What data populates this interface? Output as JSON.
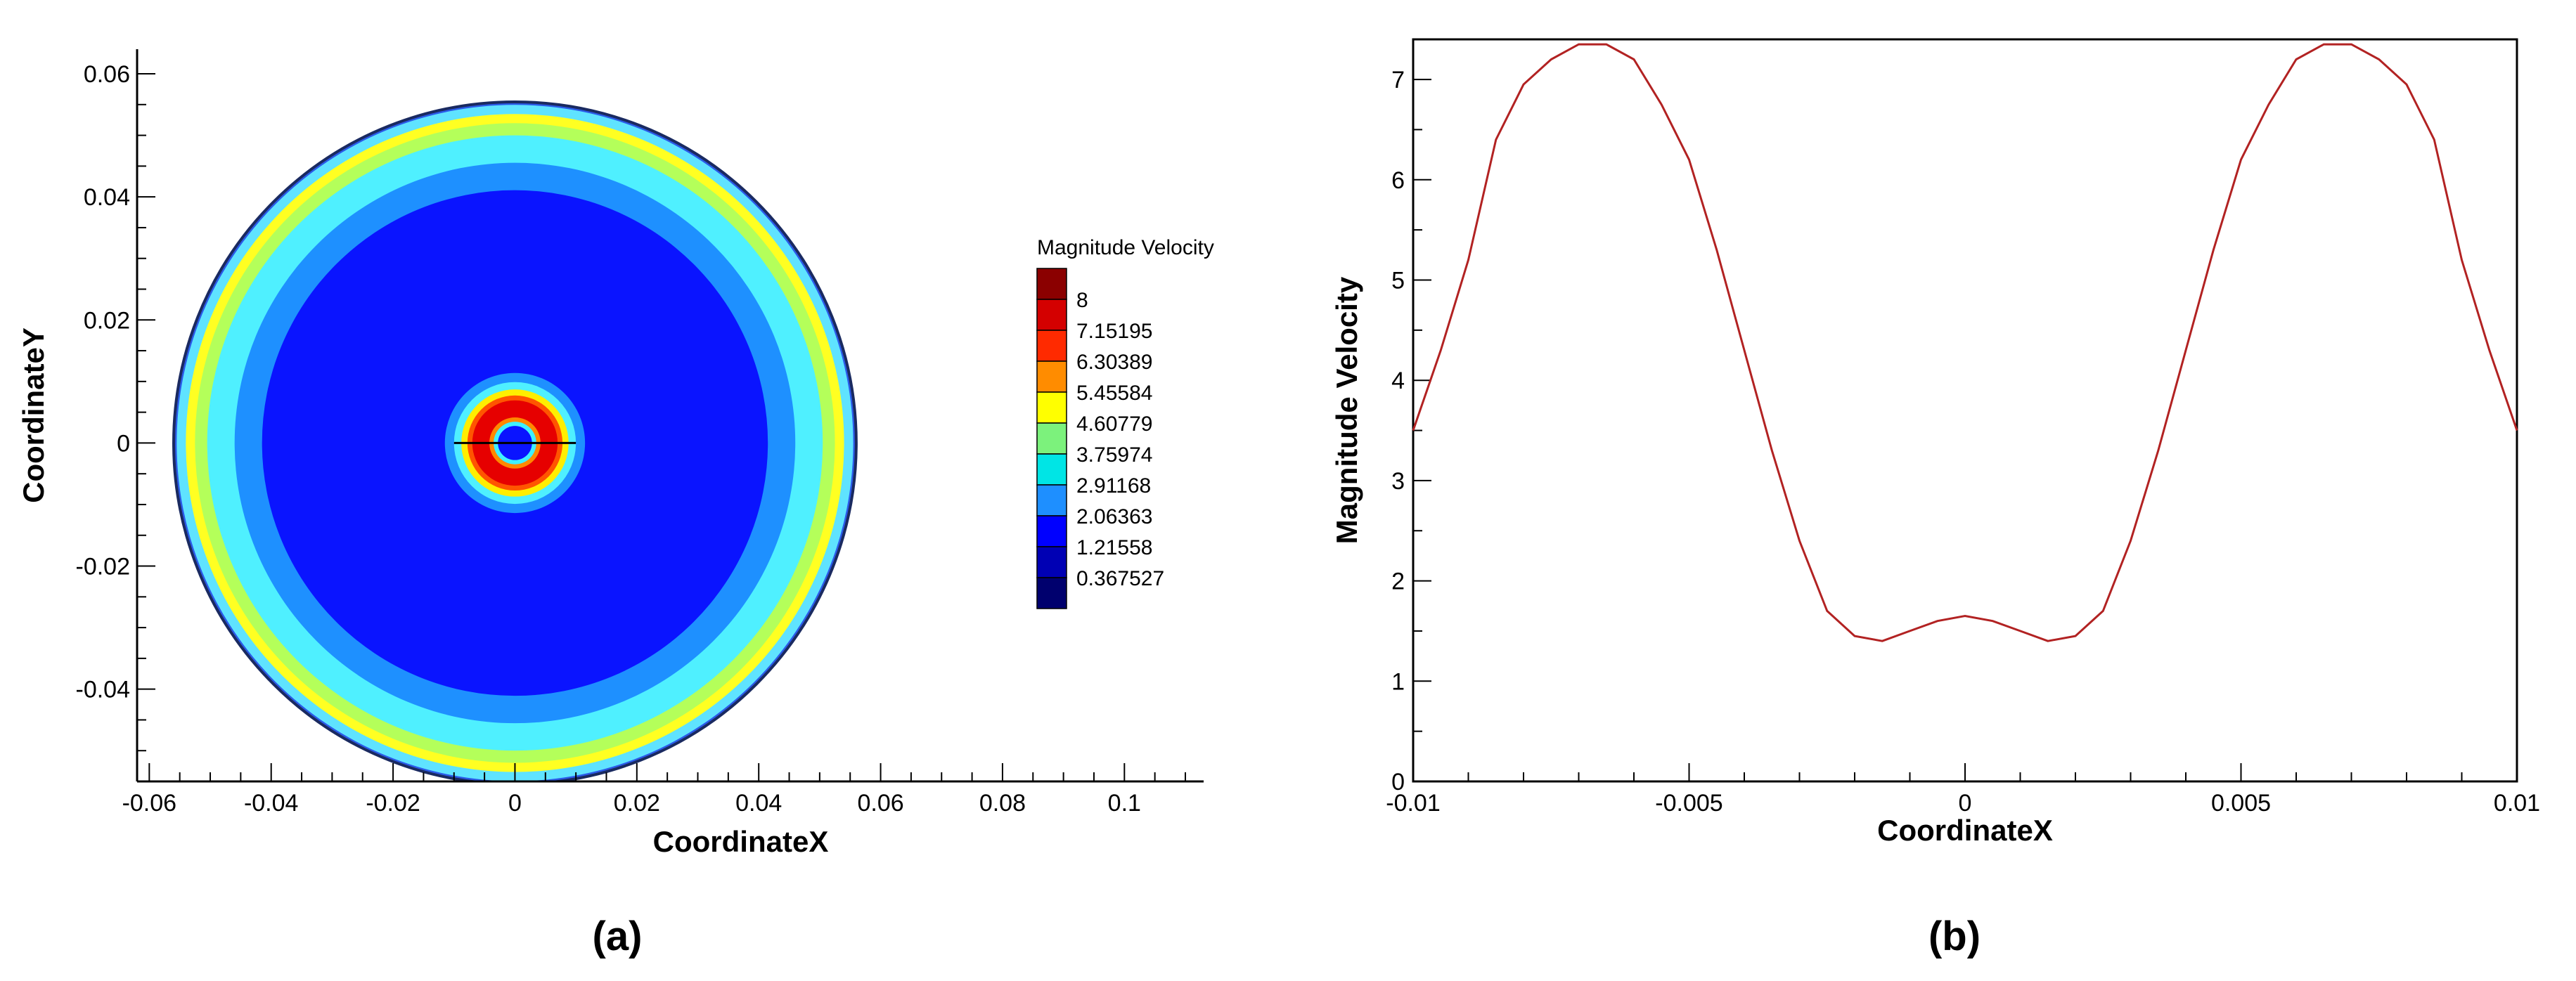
{
  "chart_data": [
    {
      "type": "heatmap",
      "panel_label": "(a)",
      "xlabel": "CoordinateX",
      "ylabel": "CoordinateY",
      "xlim": [
        -0.062,
        0.113
      ],
      "ylim": [
        -0.055,
        0.064
      ],
      "x_ticks": [
        "-0.06",
        "-0.04",
        "-0.02",
        "0",
        "0.02",
        "0.04",
        "0.06",
        "0.08",
        "0.1"
      ],
      "x_tick_values": [
        -0.06,
        -0.04,
        -0.02,
        0,
        0.02,
        0.04,
        0.06,
        0.08,
        0.1
      ],
      "y_ticks": [
        "0.06",
        "0.04",
        "0.02",
        "0",
        "-0.02",
        "-0.04"
      ],
      "y_tick_values": [
        0.06,
        0.04,
        0.02,
        0,
        -0.02,
        -0.04
      ],
      "legend": {
        "title": "Magnitude Velocity",
        "placement": "right",
        "levels": [
          "8",
          "7.15195",
          "6.30389",
          "5.45584",
          "4.60779",
          "3.75974",
          "2.91168",
          "2.06363",
          "1.21558",
          "0.367527"
        ],
        "colors": [
          "#8b0000",
          "#d40000",
          "#ff2a00",
          "#ff8c00",
          "#ffff00",
          "#7cf27c",
          "#00e5e5",
          "#1e8fff",
          "#0000ff",
          "#0000b4",
          "#00006e"
        ]
      },
      "domain_radius": 0.056,
      "rings_outer": [
        {
          "r": 0.056,
          "color": "#2a5ae8"
        },
        {
          "r": 0.0555,
          "color": "#5fe3ff"
        },
        {
          "r": 0.054,
          "color": "#ffff22"
        },
        {
          "r": 0.0525,
          "color": "#b4ff5a"
        },
        {
          "r": 0.0505,
          "color": "#4ff0ff"
        },
        {
          "r": 0.046,
          "color": "#1e90ff"
        },
        {
          "r": 0.0415,
          "color": "#0a14ff"
        }
      ],
      "rings_center": [
        {
          "r": 0.0115,
          "color": "#1e90ff"
        },
        {
          "r": 0.01,
          "color": "#4ff0ff"
        },
        {
          "r": 0.0088,
          "color": "#ffee00"
        },
        {
          "r": 0.0078,
          "color": "#ff5500"
        },
        {
          "r": 0.007,
          "color": "#e60000"
        },
        {
          "r": 0.0042,
          "color": "#ff8800"
        },
        {
          "r": 0.0035,
          "color": "#3ff0ff"
        },
        {
          "r": 0.0028,
          "color": "#0a14ff"
        }
      ],
      "sample_line": {
        "x": [
          -0.01,
          0.01
        ],
        "y": 0
      }
    },
    {
      "type": "line",
      "panel_label": "(b)",
      "xlabel": "CoordinateX",
      "ylabel": "Magnitude Velocity",
      "xlim": [
        -0.01,
        0.01
      ],
      "ylim": [
        0,
        7.4
      ],
      "x_ticks": [
        "-0.01",
        "-0.005",
        "0",
        "0.005",
        "0.01"
      ],
      "x_tick_values": [
        -0.01,
        -0.005,
        0,
        0.005,
        0.01
      ],
      "y_ticks": [
        "0",
        "1",
        "2",
        "3",
        "4",
        "5",
        "6",
        "7"
      ],
      "y_tick_values": [
        0,
        1,
        2,
        3,
        4,
        5,
        6,
        7
      ],
      "series": [
        {
          "color": "#b22222",
          "x": [
            -0.01,
            -0.0095,
            -0.009,
            -0.0085,
            -0.008,
            -0.0075,
            -0.007,
            -0.0065,
            -0.006,
            -0.0055,
            -0.005,
            -0.0045,
            -0.004,
            -0.0035,
            -0.003,
            -0.0025,
            -0.002,
            -0.0015,
            -0.001,
            -0.0005,
            0,
            0.0005,
            0.001,
            0.0015,
            0.002,
            0.0025,
            0.003,
            0.0035,
            0.004,
            0.0045,
            0.005,
            0.0055,
            0.006,
            0.0065,
            0.007,
            0.0075,
            0.008,
            0.0085,
            0.009,
            0.0095,
            0.01
          ],
          "y": [
            3.5,
            4.3,
            5.2,
            6.4,
            6.95,
            7.2,
            7.35,
            7.35,
            7.2,
            6.75,
            6.2,
            5.3,
            4.3,
            3.3,
            2.4,
            1.7,
            1.45,
            1.4,
            1.5,
            1.6,
            1.65,
            1.6,
            1.5,
            1.4,
            1.45,
            1.7,
            2.4,
            3.3,
            4.3,
            5.3,
            6.2,
            6.75,
            7.2,
            7.35,
            7.35,
            7.2,
            6.95,
            6.4,
            5.2,
            4.3,
            3.5
          ]
        }
      ]
    }
  ]
}
